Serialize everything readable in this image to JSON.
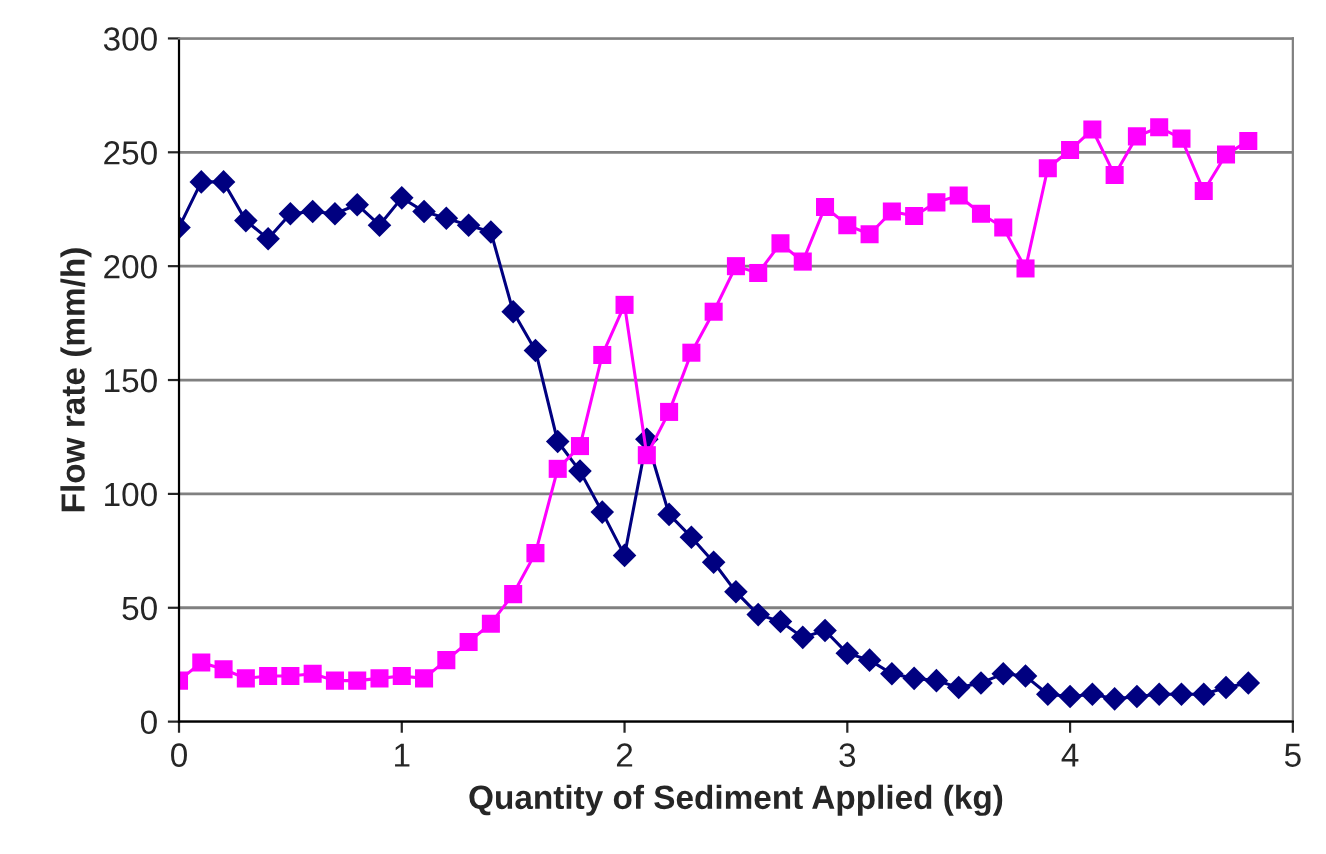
{
  "chart_data": {
    "type": "line",
    "xlabel": "Quantity of Sediment Applied (kg)",
    "ylabel": "Flow rate (mm/h)",
    "x": [
      0,
      0.1,
      0.2,
      0.3,
      0.4,
      0.5,
      0.6,
      0.7,
      0.8,
      0.9,
      1.0,
      1.1,
      1.2,
      1.3,
      1.4,
      1.5,
      1.6,
      1.7,
      1.8,
      1.9,
      2.0,
      2.1,
      2.2,
      2.3,
      2.4,
      2.5,
      2.6,
      2.7,
      2.8,
      2.9,
      3.0,
      3.1,
      3.2,
      3.3,
      3.4,
      3.5,
      3.6,
      3.7,
      3.8,
      3.9,
      4.0,
      4.1,
      4.2,
      4.3,
      4.4,
      4.5,
      4.6,
      4.7,
      4.8
    ],
    "series": [
      {
        "color": "#000080",
        "marker": "diamond",
        "values": [
          217,
          237,
          237,
          220,
          212,
          223,
          224,
          223,
          227,
          218,
          230,
          224,
          221,
          218,
          215,
          180,
          163,
          123,
          110,
          92,
          73,
          124,
          91,
          81,
          70,
          57,
          47,
          44,
          37,
          40,
          30,
          27,
          21,
          19,
          18,
          15,
          17,
          21,
          20,
          12,
          11,
          12,
          10,
          11,
          12,
          12,
          12,
          15,
          17
        ]
      },
      {
        "color": "#ff00ff",
        "marker": "square",
        "values": [
          18,
          26,
          23,
          19,
          20,
          20,
          21,
          18,
          18,
          19,
          20,
          19,
          27,
          35,
          43,
          56,
          74,
          111,
          121,
          161,
          183,
          117,
          136,
          162,
          180,
          200,
          197,
          210,
          202,
          226,
          218,
          214,
          224,
          222,
          228,
          231,
          223,
          217,
          199,
          243,
          251,
          260,
          240,
          257,
          261,
          256,
          233,
          249,
          255
        ]
      }
    ],
    "xlim": [
      0,
      5
    ],
    "xticks": [
      0,
      1,
      2,
      3,
      4,
      5
    ],
    "ylim": [
      0,
      300
    ],
    "yticks": [
      0,
      50,
      100,
      150,
      200,
      250,
      300
    ],
    "grid": "y"
  }
}
